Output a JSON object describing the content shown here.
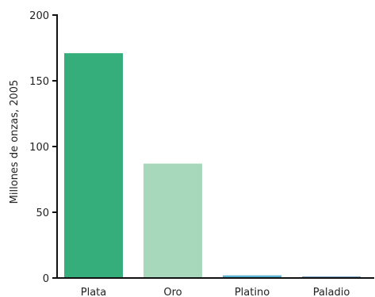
{
  "chart_data": {
    "type": "bar",
    "categories": [
      "Plata",
      "Oro",
      "Platino",
      "Paladio"
    ],
    "values": [
      171,
      87,
      2,
      1
    ],
    "colors": [
      "#36ae7c",
      "#a8d8bc",
      "#5bb3d4",
      "#2a6e9c"
    ],
    "ylabel": "Millones de onzas, 2005",
    "xlabel": "",
    "title": "",
    "ylim": [
      0,
      200
    ],
    "yticks": [
      0,
      50,
      100,
      150,
      200
    ],
    "grid": false,
    "legend": "none"
  }
}
